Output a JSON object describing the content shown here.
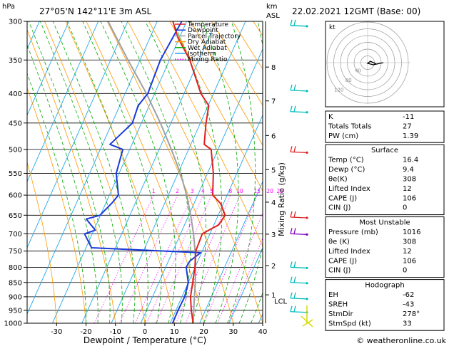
{
  "header": {
    "hpa_label": "hPa",
    "location": "27°05'N 142°11'E 3m ASL",
    "km_label": "km",
    "asl_label": "ASL",
    "datetime": "22.02.2021 12GMT (Base: 00)"
  },
  "legend": [
    {
      "name": "Temperature",
      "color": "#e02020"
    },
    {
      "name": "Dewpoint",
      "color": "#1a3adb"
    },
    {
      "name": "Parcel Trajectory",
      "color": "#909090"
    },
    {
      "name": "Dry Adiabat",
      "color": "#ff8c00"
    },
    {
      "name": "Wet Adiabat",
      "color": "#00a000"
    },
    {
      "name": "Isotherm",
      "color": "#00a0e0"
    },
    {
      "name": "Mixing Ratio",
      "color": "#ff00ff"
    }
  ],
  "chart_data": {
    "type": "line",
    "xlabel": "Dewpoint / Temperature (°C)",
    "ylabel_right": "Mixing Ratio (g/kg)",
    "pressure_ticks": [
      300,
      350,
      400,
      450,
      500,
      550,
      600,
      650,
      700,
      750,
      800,
      850,
      900,
      950,
      1000
    ],
    "temp_ticks": [
      -30,
      -20,
      -10,
      0,
      10,
      20,
      30,
      40
    ],
    "xlim": [
      -40,
      40
    ],
    "ylim_hpa": [
      1000,
      300
    ],
    "skew_deg_per_100hpa": 6.5,
    "km_ticks": [
      {
        "label": "1",
        "p": 893
      },
      {
        "label": "2",
        "p": 795
      },
      {
        "label": "3",
        "p": 701
      },
      {
        "label": "4",
        "p": 617
      },
      {
        "label": "5",
        "p": 542
      },
      {
        "label": "6",
        "p": 473
      },
      {
        "label": "7",
        "p": 412
      },
      {
        "label": "8",
        "p": 360
      }
    ],
    "lcl": {
      "label": "LCL",
      "p": 915
    },
    "mixing_ratio_labels": [
      "1",
      "2",
      "3",
      "4",
      "5",
      "8",
      "10",
      "15",
      "20",
      "25"
    ],
    "mixing_ratio_values": [
      1,
      2,
      3,
      4,
      5,
      8,
      10,
      15,
      20,
      25
    ],
    "temperature": {
      "name": "Temperature",
      "points": [
        [
          1000,
          16.4
        ],
        [
          950,
          12.5
        ],
        [
          900,
          9
        ],
        [
          850,
          6.5
        ],
        [
          800,
          4
        ],
        [
          750,
          1
        ],
        [
          700,
          0
        ],
        [
          675,
          4
        ],
        [
          650,
          4.5
        ],
        [
          620,
          1
        ],
        [
          600,
          -3
        ],
        [
          550,
          -6
        ],
        [
          500,
          -10
        ],
        [
          490,
          -13
        ],
        [
          450,
          -15
        ],
        [
          420,
          -16
        ],
        [
          400,
          -20
        ],
        [
          350,
          -27
        ],
        [
          320,
          -33
        ],
        [
          300,
          -36
        ]
      ]
    },
    "dewpoint": {
      "name": "Dewpoint",
      "points": [
        [
          1000,
          9.4
        ],
        [
          950,
          8
        ],
        [
          900,
          7
        ],
        [
          850,
          5
        ],
        [
          800,
          1
        ],
        [
          780,
          1
        ],
        [
          755,
          3
        ],
        [
          740,
          -35
        ],
        [
          700,
          -40
        ],
        [
          690,
          -37
        ],
        [
          660,
          -42
        ],
        [
          650,
          -38
        ],
        [
          620,
          -36
        ],
        [
          600,
          -35
        ],
        [
          550,
          -39
        ],
        [
          500,
          -40
        ],
        [
          490,
          -45
        ],
        [
          450,
          -40
        ],
        [
          420,
          -40
        ],
        [
          400,
          -38
        ],
        [
          350,
          -37
        ],
        [
          300,
          -33
        ]
      ]
    },
    "parcel": {
      "name": "Parcel Trajectory",
      "points": [
        [
          1000,
          16.4
        ],
        [
          915,
          11.2
        ],
        [
          850,
          7.4
        ],
        [
          800,
          4.2
        ],
        [
          750,
          0.8
        ],
        [
          700,
          -3
        ],
        [
          650,
          -7.2
        ],
        [
          600,
          -11.8
        ],
        [
          550,
          -17.2
        ],
        [
          500,
          -23.5
        ],
        [
          450,
          -30.5
        ],
        [
          400,
          -38.5
        ],
        [
          350,
          -48
        ],
        [
          300,
          -58
        ]
      ]
    }
  },
  "indices": {
    "rows1": [
      {
        "label": "K",
        "value": "-11"
      },
      {
        "label": "Totals Totals",
        "value": "27"
      },
      {
        "label": "PW (cm)",
        "value": "1.39"
      }
    ],
    "surface_title": "Surface",
    "surface": [
      {
        "label": "Temp (°C)",
        "value": "16.4"
      },
      {
        "label": "Dewp (°C)",
        "value": "9.4"
      },
      {
        "label": "θe(K)",
        "value": "308"
      },
      {
        "label": "Lifted Index",
        "value": "12"
      },
      {
        "label": "CAPE (J)",
        "value": "106"
      },
      {
        "label": "CIN (J)",
        "value": "0"
      }
    ],
    "mu_title": "Most Unstable",
    "most_unstable": [
      {
        "label": "Pressure (mb)",
        "value": "1016"
      },
      {
        "label": "θe (K)",
        "value": "308"
      },
      {
        "label": "Lifted Index",
        "value": "12"
      },
      {
        "label": "CAPE (J)",
        "value": "106"
      },
      {
        "label": "CIN (J)",
        "value": "0"
      }
    ],
    "hodo_title": "Hodograph",
    "hodograph": [
      {
        "label": "EH",
        "value": "-62"
      },
      {
        "label": "SREH",
        "value": "-43"
      },
      {
        "label": "StmDir",
        "value": "278°"
      },
      {
        "label": "StmSpd (kt)",
        "value": "33"
      }
    ]
  },
  "hodograph_plot": {
    "unit_label": "kt",
    "ring_labels": [
      "20",
      "40",
      "60",
      "80",
      "100",
      "120"
    ]
  },
  "copyright": "© weatheronline.co.uk",
  "colors": {
    "temperature": "#e02020",
    "dewpoint": "#1a3adb",
    "parcel": "#a0a0a0",
    "dry": "#ff9900",
    "wet": "#00aa00",
    "isotherm": "#22a8e8",
    "mixing": "#ff00ff"
  }
}
